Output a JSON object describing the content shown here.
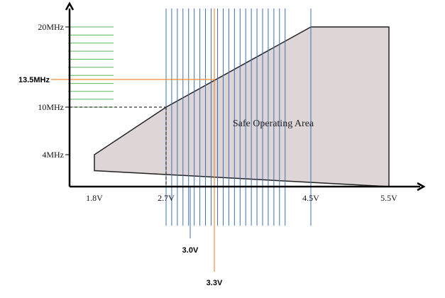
{
  "chart_data": {
    "type": "area",
    "title": "",
    "xlabel": "",
    "ylabel": "",
    "region_label": "Safe Operating Area",
    "region_fill": "#ded6d6",
    "boundary": [
      {
        "x": 1.8,
        "y": 2.0
      },
      {
        "x": 1.8,
        "y": 4.0
      },
      {
        "x": 2.7,
        "y": 10.0
      },
      {
        "x": 4.5,
        "y": 20.0
      },
      {
        "x": 5.5,
        "y": 20.0
      },
      {
        "x": 5.5,
        "y": 0.0
      }
    ],
    "x_ticks": [
      {
        "value": 1.8,
        "label": "1.8V"
      },
      {
        "value": 2.7,
        "label": "2.7V"
      },
      {
        "value": 4.5,
        "label": "4.5V"
      },
      {
        "value": 5.5,
        "label": "5.5V"
      }
    ],
    "y_ticks": [
      {
        "value": 4,
        "label": "4MHz"
      },
      {
        "value": 10,
        "label": "10MHz"
      },
      {
        "value": 20,
        "label": "20MHz"
      }
    ],
    "reference_lines": {
      "x": {
        "value": 3.3,
        "label": "3.3V",
        "color": "#f28c3a"
      },
      "y": {
        "value": 13.5,
        "label": "13.5MHz",
        "color": "#f28c3a"
      }
    },
    "dashed_guides": [
      {
        "axis": "y",
        "value": 10
      },
      {
        "axis": "x",
        "value": 2.7
      }
    ],
    "vertical_line_group": {
      "x_values": [
        2.7,
        2.77,
        2.84,
        2.91,
        2.98,
        3.05,
        3.12,
        3.19,
        3.26,
        3.34,
        3.41,
        3.48,
        3.55,
        3.62,
        3.69,
        3.76,
        3.83,
        3.9,
        3.97,
        4.04,
        4.11,
        4.18,
        4.5
      ],
      "color": "#3f6fb5",
      "annotation": {
        "value": 3.0,
        "label": "3.0V"
      }
    },
    "horizontal_line_group": {
      "y_values": [
        20.0,
        19.0,
        18.0,
        17.0,
        16.0,
        15.0,
        14.0,
        13.0,
        12.0,
        11.0,
        10.0
      ],
      "color": "#5cb85c"
    },
    "axis_color": "#000000"
  }
}
